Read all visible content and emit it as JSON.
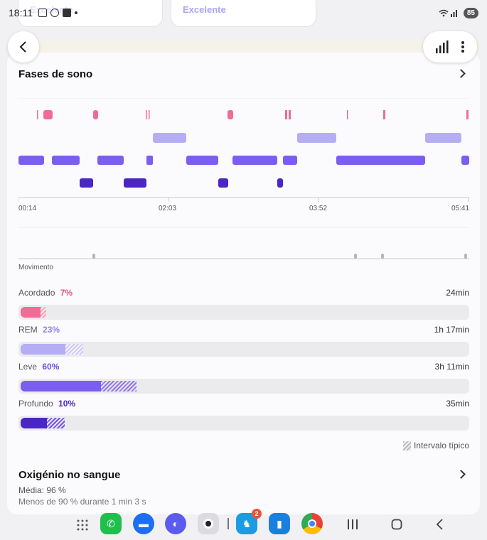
{
  "status_bar": {
    "time": "18:11",
    "battery": "85"
  },
  "prev_cards": {
    "left_text": "Excelente",
    "right_text": "Excelente"
  },
  "sleep_phases": {
    "title": "Fases de sono",
    "time_ticks": [
      "00:14",
      "02:03",
      "03:52",
      "05:41"
    ],
    "movement_label": "Movimento",
    "stages": [
      {
        "name": "Acordado",
        "percent": "7%",
        "duration": "24min",
        "fill": 0.045,
        "typical_end": 0.055,
        "color": "#f06b95",
        "light": "#f7a3bf"
      },
      {
        "name": "REM",
        "percent": "23%",
        "duration": "1h 17min",
        "fill": 0.1,
        "typical_end": 0.14,
        "color": "#b6aef5",
        "light": "#cfc9f8"
      },
      {
        "name": "Leve",
        "percent": "60%",
        "duration": "3h 11min",
        "fill": 0.18,
        "typical_end": 0.26,
        "color": "#7b5ef0",
        "light": "#9b86f2"
      },
      {
        "name": "Profundo",
        "percent": "10%",
        "duration": "35min",
        "fill": 0.06,
        "typical_end": 0.1,
        "color": "#4a26c4",
        "light": "#7356d6"
      }
    ],
    "legend": "Intervalo típico",
    "colors": {
      "awake": "#f06b95",
      "rem": "#b6aef5",
      "light": "#7b5ef0",
      "deep": "#4a26c4"
    }
  },
  "blood_oxygen": {
    "title": "Oxigénio no sangue",
    "average": "Média: 96 %",
    "below_90": "Menos de 90 % durante 1 min 3 s"
  },
  "icons": [
    "back-icon",
    "bar-chart-icon",
    "more-vertical-icon",
    "chevron-right-icon"
  ],
  "taskbar_apps": [
    {
      "name": "apps-grid"
    },
    {
      "name": "phone-app"
    },
    {
      "name": "messages-app"
    },
    {
      "name": "internet-app"
    },
    {
      "name": "camera-app"
    },
    {
      "name": "game-app",
      "badge": "2"
    },
    {
      "name": "stats-app"
    },
    {
      "name": "chrome-app"
    }
  ]
}
